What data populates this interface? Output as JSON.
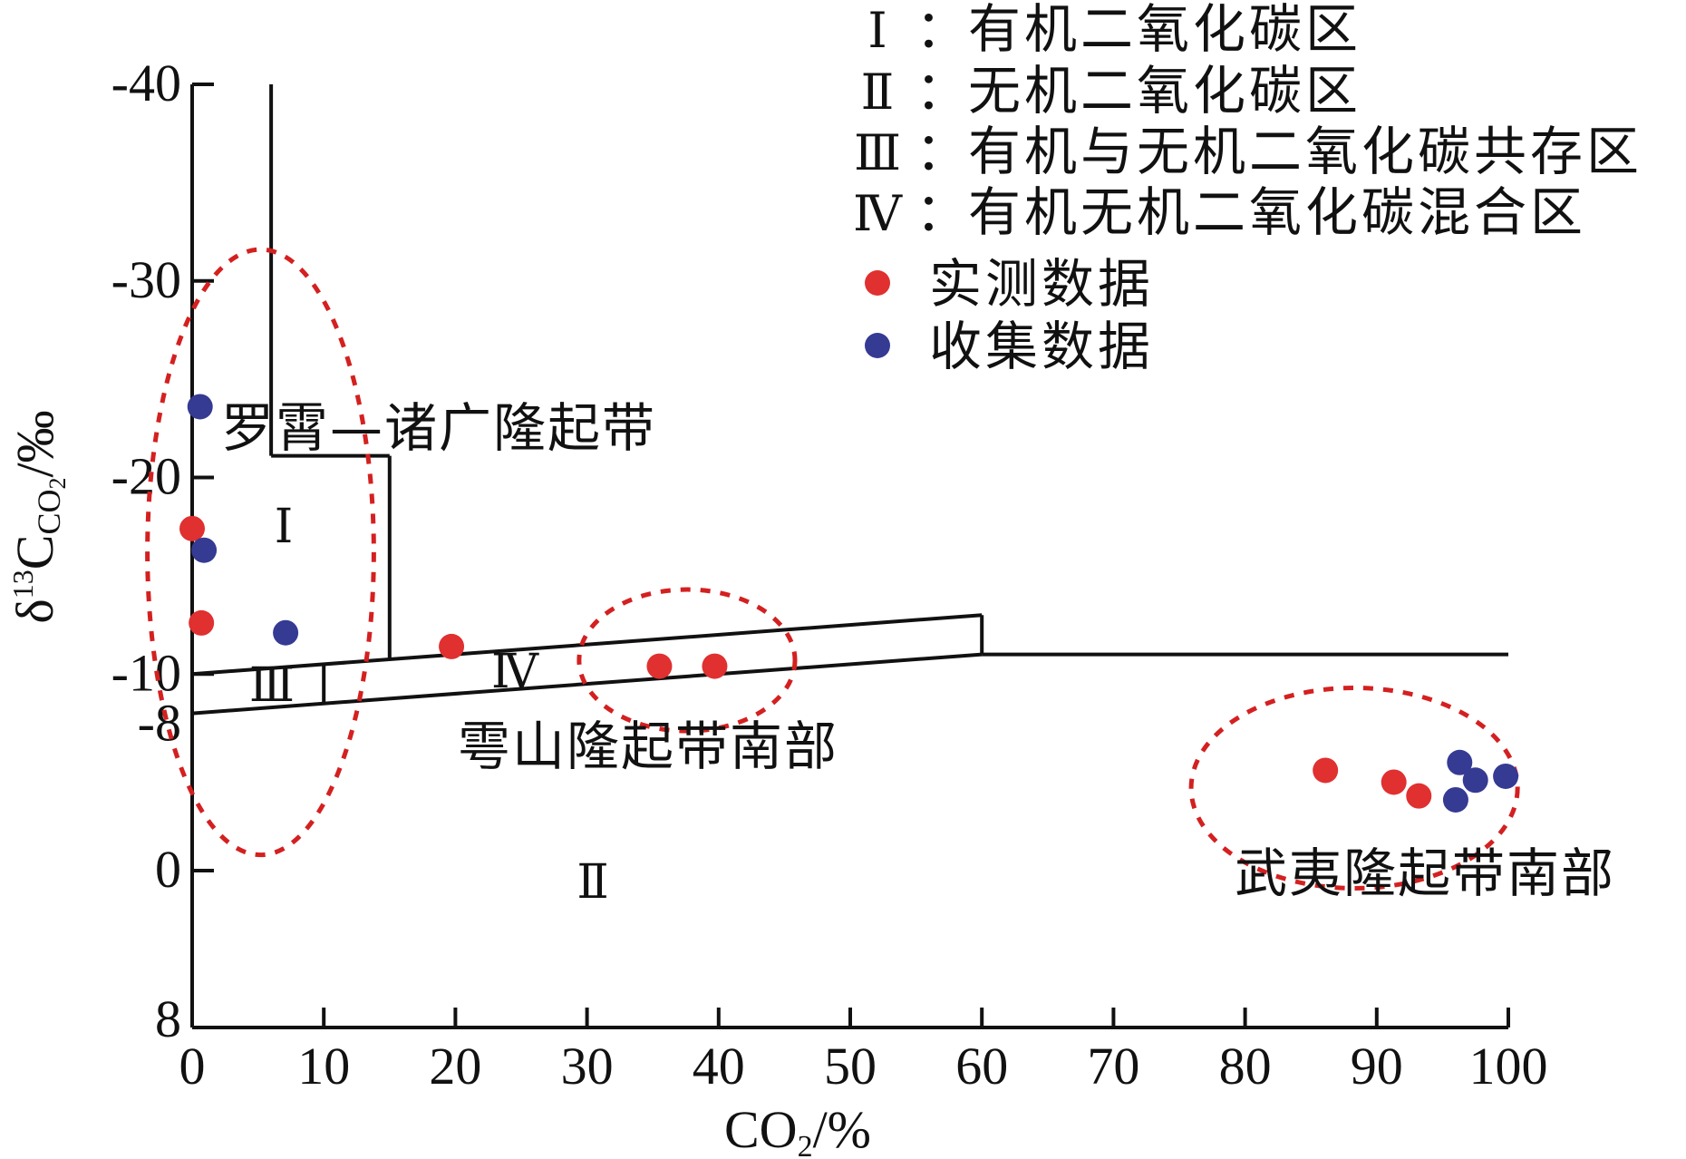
{
  "chart_data": {
    "type": "scatter",
    "title": "",
    "xlabel": {
      "main": "CO",
      "sub": "2",
      "unit": "/%"
    },
    "ylabel": {
      "main": "δ",
      "sup": "13",
      "c": "C",
      "sub_a": "CO",
      "sub_b": "2",
      "unit": "/‰"
    },
    "xlim": [
      0,
      100
    ],
    "ylim": [
      8,
      -40
    ],
    "x_ticks": [
      0,
      10,
      20,
      30,
      40,
      50,
      60,
      70,
      80,
      90,
      100
    ],
    "y_ticks": [
      -40,
      -30,
      -20,
      -10,
      -8,
      0,
      8
    ],
    "grid": false,
    "colors": {
      "measured": "#e03030",
      "collected": "#353a93",
      "ellipse": "#d42020",
      "line": "#111111"
    },
    "legend": {
      "position": "top-right",
      "regions": [
        {
          "key": "Ⅰ",
          "sep": "：",
          "text": "有机二氧化碳区"
        },
        {
          "key": "Ⅱ",
          "sep": "：",
          "text": "无机二氧化碳区"
        },
        {
          "key": "Ⅲ",
          "sep": "：",
          "text": "有机与无机二氧化碳共存区"
        },
        {
          "key": "Ⅳ",
          "sep": "：",
          "text": "有机无机二氧化碳混合区"
        }
      ],
      "series": [
        {
          "name": "实测数据",
          "color": "#e03030"
        },
        {
          "name": "收集数据",
          "color": "#353a93"
        }
      ]
    },
    "region_labels": [
      "Ⅰ",
      "Ⅱ",
      "Ⅲ",
      "Ⅳ"
    ],
    "group_labels": [
      "罗霄—诸广隆起带",
      "雩山隆起带南部",
      "武夷隆起带南部"
    ],
    "series": [
      {
        "name": "实测数据",
        "color": "#e03030",
        "points": [
          [
            0,
            -17.4
          ],
          [
            0.7,
            -12.6
          ],
          [
            19.7,
            -11.4
          ],
          [
            35.5,
            -10.4
          ],
          [
            39.7,
            -10.4
          ],
          [
            86.1,
            -5.1
          ],
          [
            91.3,
            -4.5
          ],
          [
            93.2,
            -3.8
          ]
        ]
      },
      {
        "name": "收集数据",
        "color": "#353a93",
        "points": [
          [
            0.6,
            -23.6
          ],
          [
            0.9,
            -16.3
          ],
          [
            7.1,
            -12.1
          ],
          [
            96.3,
            -5.5
          ],
          [
            97.5,
            -4.6
          ],
          [
            99.8,
            -4.8
          ],
          [
            96.0,
            -3.6
          ]
        ]
      }
    ]
  }
}
